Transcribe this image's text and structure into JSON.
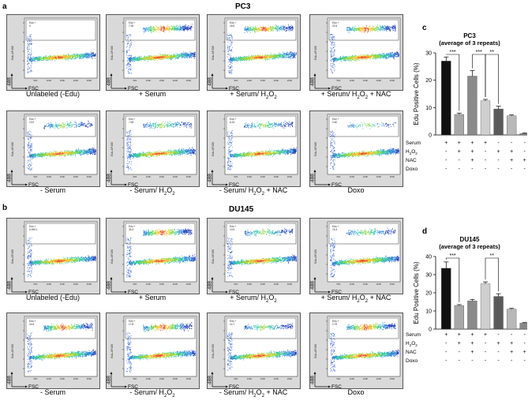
{
  "figure": {
    "panel_a": "a",
    "panel_b": "b",
    "panel_c": "c",
    "panel_d": "d",
    "pc3_title": "PC3",
    "du145_title": "DU145"
  },
  "flow_axes": {
    "y": "488",
    "x": "FSC",
    "scale_ticks": [
      "50K",
      "100K",
      "150K",
      "200K",
      "250K"
    ]
  },
  "pc3_panels": [
    {
      "caption": "Unlabeled (-Edu)",
      "gate_label": "Edu +",
      "gate_value": "0",
      "population": "none"
    },
    {
      "caption": "+ Serum",
      "gate_label": "Edu +",
      "gate_value": "7.94",
      "population": "strong"
    },
    {
      "caption": "+ Serum/ H2O2",
      "gate_label": "Edu +",
      "gate_value": "18.5",
      "population": "strong"
    },
    {
      "caption": "+ Serum/ H2O2 + NAC",
      "gate_label": "Edu +",
      "gate_value": "22.6",
      "population": "strong"
    },
    {
      "caption": "- Serum",
      "gate_label": "Edu +",
      "gate_value": "13.0",
      "population": "medium"
    },
    {
      "caption": "- Serum/ H2O2",
      "gate_label": "Edu +",
      "gate_value": "7.63",
      "population": "medium"
    },
    {
      "caption": "- Serum/ H2O2 + NAC",
      "gate_label": "Edu +",
      "gate_value": "6.24",
      "population": "medium"
    },
    {
      "caption": "Doxo",
      "gate_label": "Edu +",
      "gate_value": "0.40",
      "population": "weak"
    }
  ],
  "du145_panels": [
    {
      "caption": "Unlabeled (-Edu)",
      "gate_label": "Edu +",
      "gate_value": "0.005 1",
      "population": "none"
    },
    {
      "caption": "+ Serum",
      "gate_label": "Edu +",
      "gate_value": "35.3",
      "population": "strong"
    },
    {
      "caption": "+ Serum/ H2O2",
      "gate_label": "Edu +",
      "gate_value": "13.9",
      "population": "medium"
    },
    {
      "caption": "+ Serum/ H2O2 + NAC",
      "gate_label": "Edu +",
      "gate_value": "15.3",
      "population": "medium"
    },
    {
      "caption": "- Serum",
      "gate_label": "Edu +",
      "gate_value": "24.8",
      "population": "strong"
    },
    {
      "caption": "- Serum/ H2O2",
      "gate_label": "Edu +",
      "gate_value": "17.8",
      "population": "strong"
    },
    {
      "caption": "- Serum/ H2O2 + NAC",
      "gate_label": "Edu +",
      "gate_value": "14.7",
      "population": "medium"
    },
    {
      "caption": "Doxo",
      "gate_label": "Edu +",
      "gate_value": "2.79",
      "population": "strong"
    }
  ],
  "conditions": {
    "rows": [
      "Serum",
      "H2O2",
      "NAC",
      "Doxo"
    ],
    "values": [
      [
        "+",
        "+",
        "+",
        "+",
        "-",
        "-",
        "-",
        "-"
      ],
      [
        "-",
        "+",
        "+",
        "-",
        "+",
        "+",
        "-",
        "-"
      ],
      [
        "-",
        "-",
        "+",
        "-",
        "-",
        "+",
        "+",
        "-"
      ],
      [
        "-",
        "-",
        "-",
        "-",
        "-",
        "-",
        "-",
        "+"
      ]
    ]
  },
  "chart_data": [
    {
      "type": "bar",
      "title": "PC3",
      "subtitle": "(average of 3 repeats)",
      "ylabel": "Edu Positive Cells (%)",
      "ylim": [
        0,
        30
      ],
      "yticks": [
        0,
        10,
        20,
        30
      ],
      "values": [
        27,
        7.5,
        21.5,
        12.5,
        9.5,
        7,
        0.5
      ],
      "errors": [
        1.5,
        0.5,
        2.0,
        0.5,
        1.0,
        0.3,
        0.2
      ],
      "colors": [
        "#111111",
        "#a8a8a8",
        "#8a8a8a",
        "#cfcfcf",
        "#5a5a5a",
        "#b8b8b8",
        "#888888"
      ],
      "significance": [
        {
          "from": 0,
          "to": 1,
          "label": "***"
        },
        {
          "from": 2,
          "to": 3,
          "label": "***"
        },
        {
          "from": 3,
          "to": 4,
          "label": "**"
        }
      ]
    },
    {
      "type": "bar",
      "title": "DU145",
      "subtitle": "(average of 3 repeats)",
      "ylabel": "Edu Positive Cells (%)",
      "ylim": [
        0,
        40
      ],
      "yticks": [
        0,
        10,
        20,
        30,
        40
      ],
      "values": [
        33.5,
        13,
        15.5,
        25,
        18,
        11,
        3.3
      ],
      "errors": [
        3.5,
        0.5,
        0.8,
        1.0,
        1.5,
        0.4,
        0.3
      ],
      "colors": [
        "#111111",
        "#a8a8a8",
        "#8a8a8a",
        "#cfcfcf",
        "#5a5a5a",
        "#b8b8b8",
        "#888888"
      ],
      "significance": [
        {
          "from": 0,
          "to": 1,
          "label": "***"
        },
        {
          "from": 3,
          "to": 4,
          "label": "**"
        }
      ]
    }
  ]
}
